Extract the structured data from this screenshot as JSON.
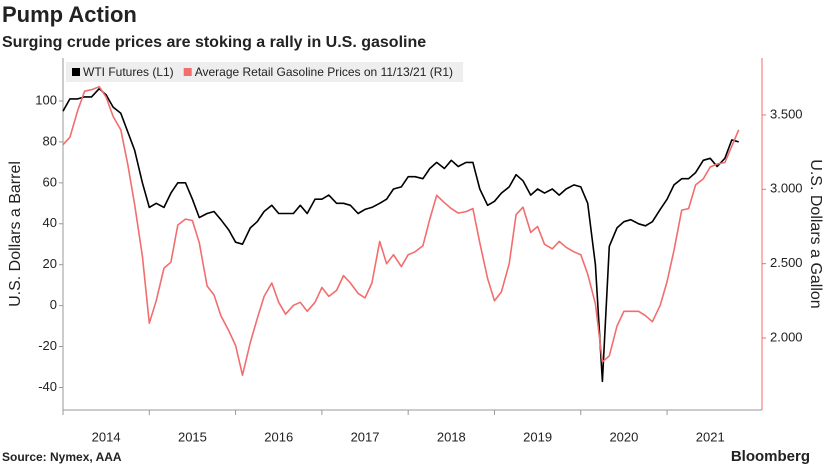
{
  "chart_data": {
    "type": "line",
    "title": "Pump Action",
    "subtitle": "Surging crude prices are stoking a rally in U.S. gasoline",
    "ylabel": "U.S. Dollars a Barrel",
    "y2label": "U.S. Dollars a Gallon",
    "source": "Source: Nymex, AAA",
    "brand": "Bloomberg",
    "x": [
      2014.0,
      2014.08,
      2014.17,
      2014.25,
      2014.33,
      2014.42,
      2014.5,
      2014.58,
      2014.67,
      2014.75,
      2014.83,
      2014.92,
      2015.0,
      2015.08,
      2015.17,
      2015.25,
      2015.33,
      2015.42,
      2015.5,
      2015.58,
      2015.67,
      2015.75,
      2015.83,
      2015.92,
      2016.0,
      2016.08,
      2016.17,
      2016.25,
      2016.33,
      2016.42,
      2016.5,
      2016.58,
      2016.67,
      2016.75,
      2016.83,
      2016.92,
      2017.0,
      2017.08,
      2017.17,
      2017.25,
      2017.33,
      2017.42,
      2017.5,
      2017.58,
      2017.67,
      2017.75,
      2017.83,
      2017.92,
      2018.0,
      2018.08,
      2018.17,
      2018.25,
      2018.33,
      2018.42,
      2018.5,
      2018.58,
      2018.67,
      2018.75,
      2018.83,
      2018.92,
      2019.0,
      2019.08,
      2019.17,
      2019.25,
      2019.33,
      2019.42,
      2019.5,
      2019.58,
      2019.67,
      2019.75,
      2019.83,
      2019.92,
      2020.0,
      2020.08,
      2020.17,
      2020.25,
      2020.33,
      2020.42,
      2020.5,
      2020.58,
      2020.67,
      2020.75,
      2020.83,
      2020.92,
      2021.0,
      2021.08,
      2021.17,
      2021.25,
      2021.33,
      2021.42,
      2021.5,
      2021.58,
      2021.67,
      2021.75,
      2021.83
    ],
    "series": [
      {
        "name": "WTI Futures (L1)",
        "color": "#000000",
        "axis": "y",
        "values": [
          95,
          101,
          101,
          102,
          102,
          106,
          103,
          97,
          94,
          85,
          76,
          60,
          48,
          50,
          48,
          55,
          60,
          60,
          52,
          43,
          45,
          46,
          42,
          37,
          31,
          30,
          38,
          41,
          46,
          49,
          45,
          45,
          45,
          49,
          45,
          52,
          52,
          54,
          50,
          50,
          49,
          45,
          47,
          48,
          50,
          52,
          57,
          58,
          63,
          63,
          62,
          67,
          70,
          67,
          71,
          68,
          70,
          70,
          57,
          49,
          51,
          55,
          58,
          64,
          61,
          54,
          57,
          55,
          57,
          54,
          57,
          59,
          58,
          50,
          20,
          -37,
          29,
          38,
          41,
          42,
          40,
          39,
          41,
          47,
          52,
          59,
          62,
          62,
          65,
          71,
          72,
          68,
          72,
          81,
          80
        ]
      },
      {
        "name": "Average Retail Gasoline Prices on 11/13/21 (R1)",
        "color": "#f26d6d",
        "axis": "y2",
        "values": [
          3.3,
          3.35,
          3.53,
          3.66,
          3.67,
          3.69,
          3.62,
          3.49,
          3.4,
          3.17,
          2.9,
          2.55,
          2.1,
          2.25,
          2.47,
          2.51,
          2.76,
          2.8,
          2.79,
          2.64,
          2.35,
          2.29,
          2.15,
          2.05,
          1.95,
          1.75,
          1.97,
          2.13,
          2.28,
          2.37,
          2.24,
          2.16,
          2.22,
          2.24,
          2.18,
          2.24,
          2.34,
          2.28,
          2.32,
          2.42,
          2.37,
          2.3,
          2.27,
          2.37,
          2.65,
          2.5,
          2.56,
          2.48,
          2.56,
          2.58,
          2.62,
          2.8,
          2.96,
          2.91,
          2.87,
          2.84,
          2.85,
          2.87,
          2.64,
          2.4,
          2.25,
          2.31,
          2.5,
          2.83,
          2.88,
          2.71,
          2.75,
          2.63,
          2.6,
          2.65,
          2.61,
          2.58,
          2.56,
          2.43,
          2.23,
          1.84,
          1.88,
          2.08,
          2.18,
          2.18,
          2.18,
          2.15,
          2.11,
          2.22,
          2.38,
          2.59,
          2.86,
          2.87,
          3.03,
          3.07,
          3.15,
          3.17,
          3.18,
          3.29,
          3.4
        ]
      }
    ],
    "xlim": [
      2014,
      2022.1
    ],
    "xticks": [
      2014,
      2015,
      2016,
      2017,
      2018,
      2019,
      2020,
      2021
    ],
    "ylim": [
      -51,
      121
    ],
    "yticks": [
      -40,
      -20,
      0,
      20,
      40,
      60,
      80,
      100
    ],
    "y2lim": [
      1.516,
      3.883
    ],
    "y2ticks": [
      {
        "value": 2.0,
        "label": "2.000"
      },
      {
        "value": 2.5,
        "label": "2.500"
      },
      {
        "value": 3.0,
        "label": "3.000"
      },
      {
        "value": 3.5,
        "label": "3.500"
      }
    ],
    "grid": false,
    "legend": "top-left"
  }
}
